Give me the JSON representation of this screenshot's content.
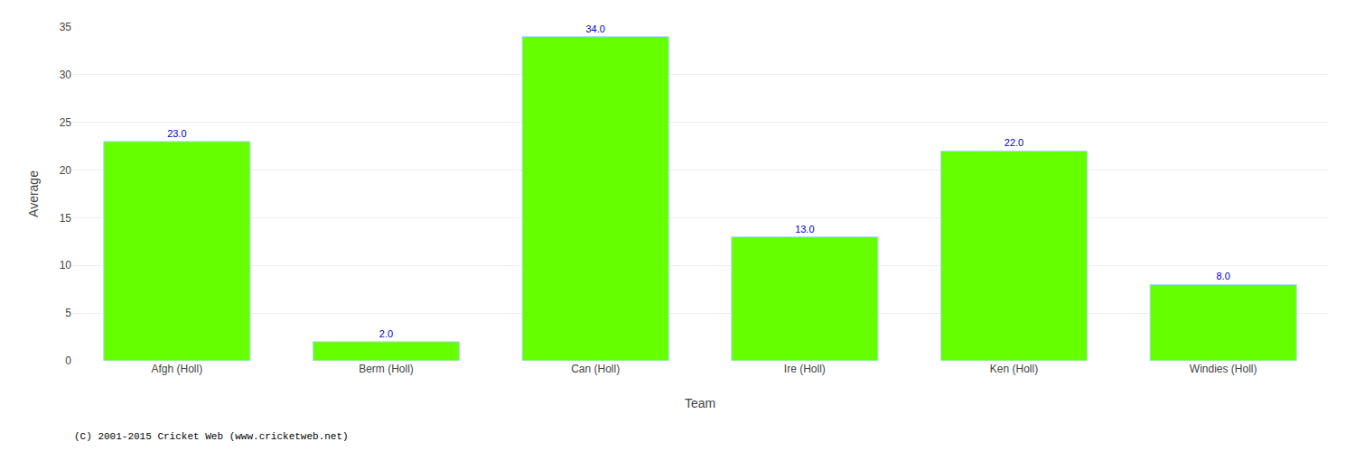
{
  "chart_data": {
    "type": "bar",
    "categories": [
      "Afgh (Holl)",
      "Berm (Holl)",
      "Can (Holl)",
      "Ire (Holl)",
      "Ken (Holl)",
      "Windies (Holl)"
    ],
    "values": [
      23.0,
      2.0,
      34.0,
      13.0,
      22.0,
      8.0
    ],
    "value_labels": [
      "23.0",
      "2.0",
      "34.0",
      "13.0",
      "22.0",
      "8.0"
    ],
    "data_labels": true,
    "color": "#66ff00",
    "xlabel": "Team",
    "ylabel": "Average",
    "ylim": [
      0,
      35
    ],
    "yticks": [
      0,
      5,
      10,
      15,
      20,
      25,
      30,
      35
    ],
    "grid": true,
    "annotations": [
      "(C) 2001-2015 Cricket Web (www.cricketweb.net)"
    ]
  }
}
